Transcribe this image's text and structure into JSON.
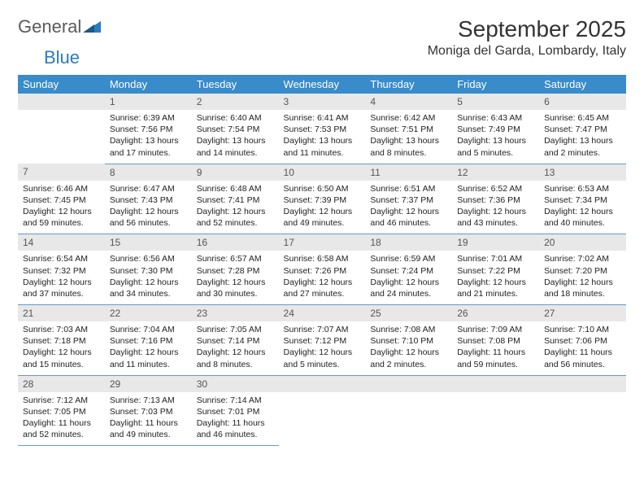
{
  "logo": {
    "text1": "General",
    "text2": "Blue"
  },
  "title": "September 2025",
  "location": "Moniga del Garda, Lombardy, Italy",
  "colors": {
    "header_bg": "#3a8bc9",
    "header_text": "#ffffff",
    "daynum_bg": "#e8e8e8",
    "daynum_text": "#555555",
    "cell_border": "#6699cc",
    "body_text": "#222222",
    "logo_gray": "#5a5a5a",
    "logo_blue": "#2b7bbf"
  },
  "weekdays": [
    "Sunday",
    "Monday",
    "Tuesday",
    "Wednesday",
    "Thursday",
    "Friday",
    "Saturday"
  ],
  "weeks": [
    [
      null,
      {
        "n": "1",
        "sr": "6:39 AM",
        "ss": "7:56 PM",
        "dl": "13 hours and 17 minutes."
      },
      {
        "n": "2",
        "sr": "6:40 AM",
        "ss": "7:54 PM",
        "dl": "13 hours and 14 minutes."
      },
      {
        "n": "3",
        "sr": "6:41 AM",
        "ss": "7:53 PM",
        "dl": "13 hours and 11 minutes."
      },
      {
        "n": "4",
        "sr": "6:42 AM",
        "ss": "7:51 PM",
        "dl": "13 hours and 8 minutes."
      },
      {
        "n": "5",
        "sr": "6:43 AM",
        "ss": "7:49 PM",
        "dl": "13 hours and 5 minutes."
      },
      {
        "n": "6",
        "sr": "6:45 AM",
        "ss": "7:47 PM",
        "dl": "13 hours and 2 minutes."
      }
    ],
    [
      {
        "n": "7",
        "sr": "6:46 AM",
        "ss": "7:45 PM",
        "dl": "12 hours and 59 minutes."
      },
      {
        "n": "8",
        "sr": "6:47 AM",
        "ss": "7:43 PM",
        "dl": "12 hours and 56 minutes."
      },
      {
        "n": "9",
        "sr": "6:48 AM",
        "ss": "7:41 PM",
        "dl": "12 hours and 52 minutes."
      },
      {
        "n": "10",
        "sr": "6:50 AM",
        "ss": "7:39 PM",
        "dl": "12 hours and 49 minutes."
      },
      {
        "n": "11",
        "sr": "6:51 AM",
        "ss": "7:37 PM",
        "dl": "12 hours and 46 minutes."
      },
      {
        "n": "12",
        "sr": "6:52 AM",
        "ss": "7:36 PM",
        "dl": "12 hours and 43 minutes."
      },
      {
        "n": "13",
        "sr": "6:53 AM",
        "ss": "7:34 PM",
        "dl": "12 hours and 40 minutes."
      }
    ],
    [
      {
        "n": "14",
        "sr": "6:54 AM",
        "ss": "7:32 PM",
        "dl": "12 hours and 37 minutes."
      },
      {
        "n": "15",
        "sr": "6:56 AM",
        "ss": "7:30 PM",
        "dl": "12 hours and 34 minutes."
      },
      {
        "n": "16",
        "sr": "6:57 AM",
        "ss": "7:28 PM",
        "dl": "12 hours and 30 minutes."
      },
      {
        "n": "17",
        "sr": "6:58 AM",
        "ss": "7:26 PM",
        "dl": "12 hours and 27 minutes."
      },
      {
        "n": "18",
        "sr": "6:59 AM",
        "ss": "7:24 PM",
        "dl": "12 hours and 24 minutes."
      },
      {
        "n": "19",
        "sr": "7:01 AM",
        "ss": "7:22 PM",
        "dl": "12 hours and 21 minutes."
      },
      {
        "n": "20",
        "sr": "7:02 AM",
        "ss": "7:20 PM",
        "dl": "12 hours and 18 minutes."
      }
    ],
    [
      {
        "n": "21",
        "sr": "7:03 AM",
        "ss": "7:18 PM",
        "dl": "12 hours and 15 minutes."
      },
      {
        "n": "22",
        "sr": "7:04 AM",
        "ss": "7:16 PM",
        "dl": "12 hours and 11 minutes."
      },
      {
        "n": "23",
        "sr": "7:05 AM",
        "ss": "7:14 PM",
        "dl": "12 hours and 8 minutes."
      },
      {
        "n": "24",
        "sr": "7:07 AM",
        "ss": "7:12 PM",
        "dl": "12 hours and 5 minutes."
      },
      {
        "n": "25",
        "sr": "7:08 AM",
        "ss": "7:10 PM",
        "dl": "12 hours and 2 minutes."
      },
      {
        "n": "26",
        "sr": "7:09 AM",
        "ss": "7:08 PM",
        "dl": "11 hours and 59 minutes."
      },
      {
        "n": "27",
        "sr": "7:10 AM",
        "ss": "7:06 PM",
        "dl": "11 hours and 56 minutes."
      }
    ],
    [
      {
        "n": "28",
        "sr": "7:12 AM",
        "ss": "7:05 PM",
        "dl": "11 hours and 52 minutes."
      },
      {
        "n": "29",
        "sr": "7:13 AM",
        "ss": "7:03 PM",
        "dl": "11 hours and 49 minutes."
      },
      {
        "n": "30",
        "sr": "7:14 AM",
        "ss": "7:01 PM",
        "dl": "11 hours and 46 minutes."
      },
      null,
      null,
      null,
      null
    ]
  ],
  "labels": {
    "sunrise": "Sunrise: ",
    "sunset": "Sunset: ",
    "daylight": "Daylight: "
  }
}
